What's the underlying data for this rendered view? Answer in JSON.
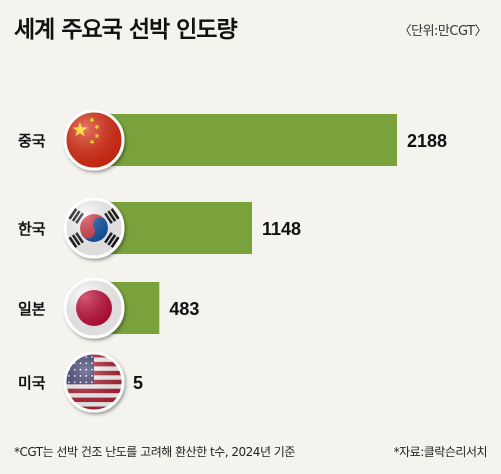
{
  "title": "세계 주요국 선박 인도량",
  "unit": "〈단위:만CGT〉",
  "footnote": "*CGT는 선박 건조 난도를 고려해 환산한 t수, 2024년 기준",
  "source": "*자료:클락슨리서치",
  "colors": {
    "bar": "#79a13c",
    "bar_shadow": "#5e7f2c",
    "background": "#f4f3ee"
  },
  "chart_data": {
    "type": "bar",
    "orientation": "horizontal",
    "title": "세계 주요국 선박 인도량",
    "xlabel": "",
    "ylabel": "",
    "categories": [
      "중국",
      "한국",
      "일본",
      "미국"
    ],
    "icons": [
      "china-flag-icon",
      "korea-flag-icon",
      "japan-flag-icon",
      "usa-flag-icon"
    ],
    "values": [
      2188,
      1148,
      483,
      5
    ],
    "value_labels": [
      "2188",
      "1148",
      "483",
      "5"
    ],
    "xlim": [
      0,
      2188
    ],
    "grid": false,
    "legend": "none"
  }
}
